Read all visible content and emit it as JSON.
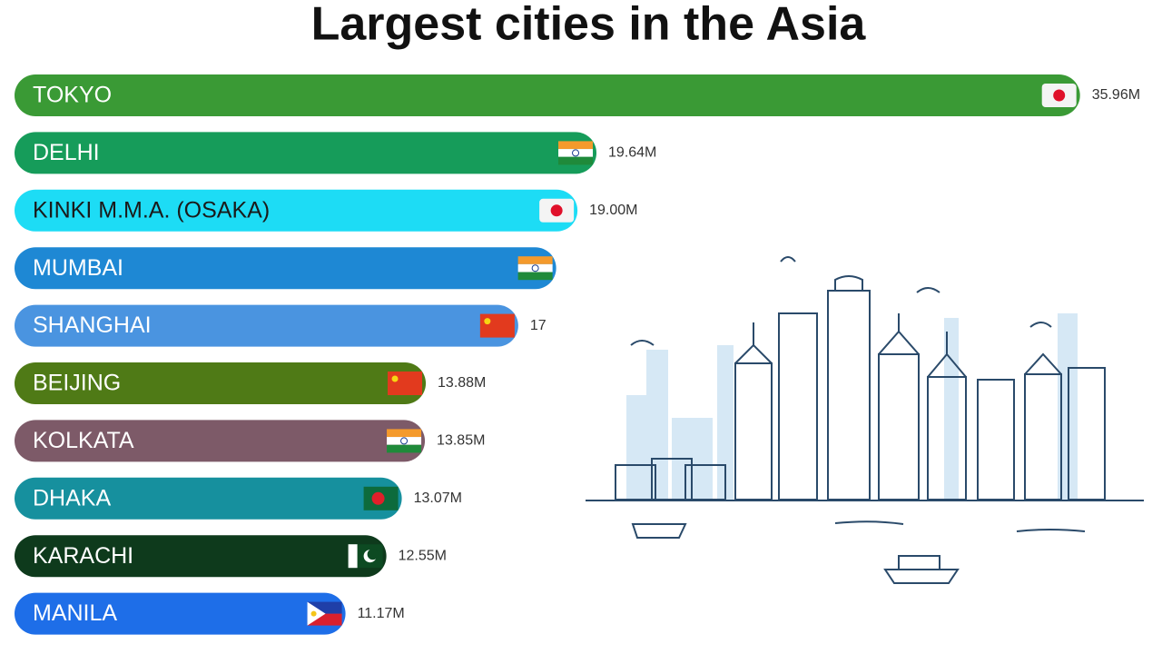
{
  "chart_data": {
    "type": "bar",
    "orientation": "horizontal",
    "title": "Largest cities in the Asia",
    "categories": [
      "TOKYO",
      "DELHI",
      "KINKI M.M.A. (OSAKA)",
      "MUMBAI",
      "SHANGHAI",
      "BEIJING",
      "KOLKATA",
      "DHAKA",
      "KARACHI",
      "MANILA"
    ],
    "values": [
      35.96,
      19.64,
      19.0,
      18.28,
      17,
      13.88,
      13.85,
      13.07,
      12.55,
      11.17
    ],
    "value_labels": [
      "35.96M",
      "19.64M",
      "19.00M",
      null,
      "17",
      "13.88M",
      "13.85M",
      "13.07M",
      "12.55M",
      "11.17M"
    ],
    "colors": [
      "#3a9a35",
      "#169c5a",
      "#1ddcf5",
      "#1e88d4",
      "#4a94e0",
      "#4f7a16",
      "#7d5a68",
      "#16909e",
      "#0e3a1c",
      "#1e6ee8"
    ],
    "xlim": [
      0,
      36
    ]
  }
}
